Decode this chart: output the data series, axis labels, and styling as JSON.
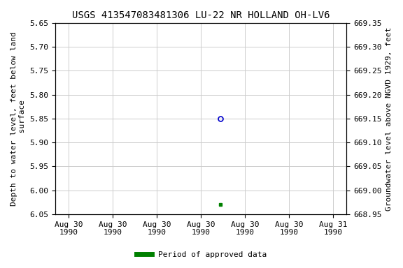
{
  "title": "USGS 413547083481306 LU-22 NR HOLLAND OH-LV6",
  "ylabel_left": "Depth to water level, feet below land\n surface",
  "ylabel_right": "Groundwater level above NGVD 1929, feet",
  "ylim_left": [
    5.65,
    6.05
  ],
  "ylim_right": [
    668.95,
    669.35
  ],
  "yticks_left": [
    5.65,
    5.7,
    5.75,
    5.8,
    5.85,
    5.9,
    5.95,
    6.0,
    6.05
  ],
  "yticks_right": [
    668.95,
    669.0,
    669.05,
    669.1,
    669.15,
    669.2,
    669.25,
    669.3,
    669.35
  ],
  "xtick_positions": [
    0,
    1,
    2,
    3,
    4,
    5,
    6
  ],
  "xtick_labels": [
    "Aug 30\n1990",
    "Aug 30\n1990",
    "Aug 30\n1990",
    "Aug 30\n1990",
    "Aug 30\n1990",
    "Aug 30\n1990",
    "Aug 31\n1990"
  ],
  "xlim": [
    -0.3,
    6.3
  ],
  "data_point_blue": {
    "x": 3.45,
    "value": 5.85
  },
  "data_point_green": {
    "x": 3.45,
    "value": 6.03
  },
  "blue_marker_color": "#0000cc",
  "green_marker_color": "#008000",
  "background_color": "#ffffff",
  "grid_color": "#cccccc",
  "title_fontsize": 10,
  "axis_label_fontsize": 8,
  "tick_fontsize": 8,
  "legend_label": "Period of approved data",
  "legend_color": "#008000",
  "font_family": "monospace"
}
